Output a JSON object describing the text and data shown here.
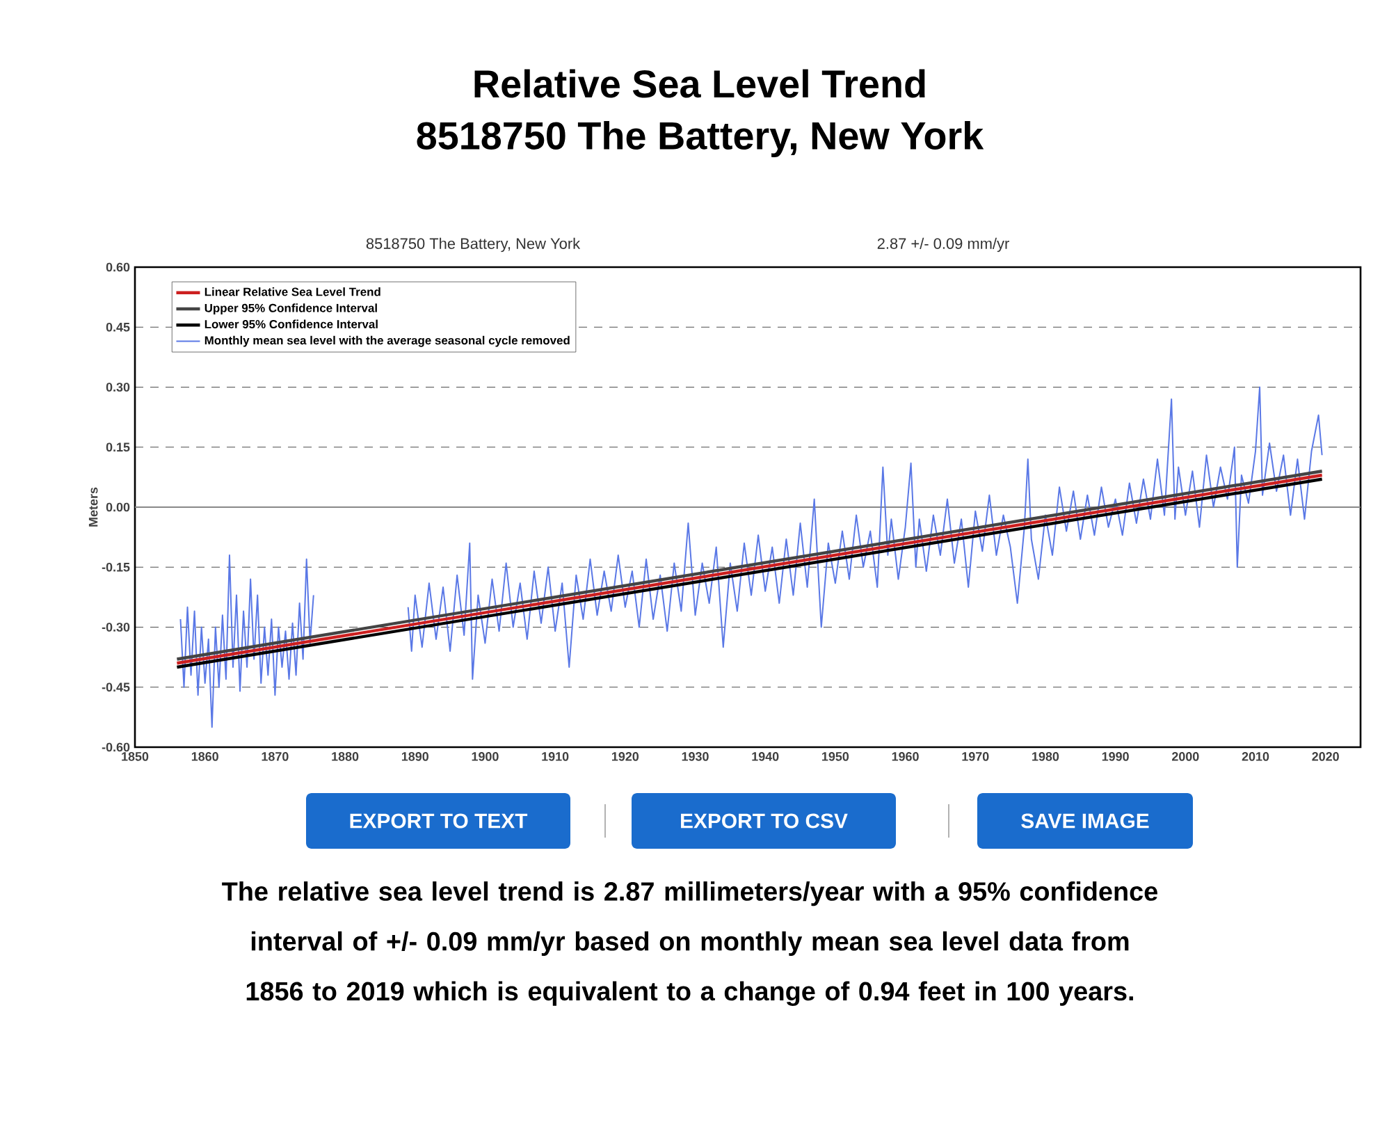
{
  "chart_data": {
    "type": "line",
    "title": "Relative Sea Level Trend",
    "subtitle": "8518750 The Battery, New York",
    "ylabel": "Meters",
    "annotations": [
      "8518750 The Battery, New York",
      "2.87 +/-  0.09 mm/yr",
      "EXPORT TO TEXT",
      "EXPORT TO CSV",
      "SAVE IMAGE",
      "The relative sea level trend is 2.87 millimeters/year with a 95% confidence interval of +/- 0.09 mm/yr based on monthly mean sea level data from 1856 to 2019 which is equivalent to a change of 0.94 feet in 100 years."
    ],
    "xlim": [
      1850,
      2025
    ],
    "xticks": [
      1850,
      1860,
      1870,
      1880,
      1890,
      1900,
      1910,
      1920,
      1930,
      1940,
      1950,
      1960,
      1970,
      1980,
      1990,
      2000,
      2010,
      2020
    ],
    "ylim": [
      -0.6,
      0.6
    ],
    "yticks": [
      {
        "value": -0.6,
        "label": "-0.60"
      },
      {
        "value": -0.45,
        "label": "-0.45"
      },
      {
        "value": -0.3,
        "label": "-0.30"
      },
      {
        "value": -0.15,
        "label": "-0.15"
      },
      {
        "value": 0,
        "label": "0.00"
      },
      {
        "value": 0.15,
        "label": "0.15"
      },
      {
        "value": 0.3,
        "label": "0.30"
      },
      {
        "value": 0.45,
        "label": "0.45"
      },
      {
        "value": 0.6,
        "label": "0.60"
      }
    ],
    "grid": "y",
    "legend": "top left",
    "marker": "none",
    "line_style": "solid",
    "ref_lines": [
      {
        "axis": "y",
        "value": 0,
        "color": "#888888"
      }
    ],
    "series": [
      {
        "name": "Linear Relative Sea Level Trend",
        "color": "#cc1f1f",
        "x": [
          1856,
          2019.5
        ],
        "values": [
          -0.39,
          0.08
        ]
      },
      {
        "name": "Upper 95% Confidence Interval",
        "color": "#444444",
        "x": [
          1856,
          2019.5
        ],
        "values": [
          -0.38,
          0.09
        ]
      },
      {
        "name": "Lower 95% Confidence Interval",
        "color": "#000000",
        "x": [
          1856,
          2019.5
        ],
        "values": [
          -0.4,
          0.07
        ]
      },
      {
        "name": "Monthly mean sea level with the average seasonal cycle removed",
        "color": "#5a78e6",
        "x": [
          1856.5,
          1857,
          1857.5,
          1858,
          1858.5,
          1859,
          1859.5,
          1860,
          1860.5,
          1861,
          1861.5,
          1862,
          1862.5,
          1863,
          1863.5,
          1864,
          1864.5,
          1865,
          1865.5,
          1866,
          1866.5,
          1867,
          1867.5,
          1868,
          1868.5,
          1869,
          1869.5,
          1870,
          1870.5,
          1871,
          1871.5,
          1872,
          1872.5,
          1873,
          1873.5,
          1874,
          1874.5,
          1875,
          1875.5,
          1882,
          1889,
          1889.5,
          1890,
          1891,
          1892,
          1893,
          1894,
          1895,
          1896,
          1897,
          1897.8,
          1898.2,
          1899,
          1900,
          1901,
          1902,
          1903,
          1904,
          1905,
          1906,
          1907,
          1908,
          1909,
          1910,
          1911,
          1912,
          1913,
          1914,
          1915,
          1916,
          1917,
          1918,
          1919,
          1920,
          1921,
          1922,
          1923,
          1924,
          1925,
          1926,
          1927,
          1928,
          1929,
          1930,
          1931,
          1932,
          1933,
          1934,
          1935,
          1936,
          1937,
          1938,
          1939,
          1940,
          1941,
          1942,
          1943,
          1944,
          1945,
          1946,
          1947,
          1948,
          1949,
          1950,
          1951,
          1952,
          1953,
          1954,
          1955,
          1956,
          1956.8,
          1957.5,
          1958,
          1959,
          1960,
          1960.8,
          1961.5,
          1962,
          1963,
          1964,
          1965,
          1966,
          1967,
          1968,
          1969,
          1970,
          1971,
          1972,
          1973,
          1974,
          1975,
          1976,
          1977,
          1977.5,
          1978,
          1979,
          1980,
          1981,
          1982,
          1983,
          1984,
          1985,
          1986,
          1987,
          1988,
          1989,
          1990,
          1991,
          1992,
          1993,
          1994,
          1995,
          1996,
          1997,
          1998,
          1998.5,
          1999,
          2000,
          2001,
          2002,
          2003,
          2004,
          2005,
          2006,
          2007,
          2007.4,
          2008,
          2009,
          2010,
          2010.6,
          2011,
          2012,
          2013,
          2014,
          2015,
          2016,
          2017,
          2018,
          2019,
          2019.5
        ],
        "values": [
          -0.28,
          -0.45,
          -0.25,
          -0.42,
          -0.26,
          -0.47,
          -0.3,
          -0.44,
          -0.33,
          -0.55,
          -0.3,
          -0.45,
          -0.27,
          -0.43,
          -0.12,
          -0.4,
          -0.22,
          -0.46,
          -0.26,
          -0.4,
          -0.18,
          -0.38,
          -0.22,
          -0.44,
          -0.3,
          -0.42,
          -0.28,
          -0.47,
          -0.3,
          -0.4,
          -0.31,
          -0.43,
          -0.29,
          -0.42,
          -0.24,
          -0.38,
          -0.13,
          -0.34,
          -0.22,
          null,
          -0.25,
          -0.36,
          -0.22,
          -0.35,
          -0.19,
          -0.33,
          -0.2,
          -0.36,
          -0.17,
          -0.32,
          -0.09,
          -0.43,
          -0.22,
          -0.34,
          -0.18,
          -0.31,
          -0.14,
          -0.3,
          -0.19,
          -0.33,
          -0.16,
          -0.29,
          -0.15,
          -0.31,
          -0.19,
          -0.4,
          -0.17,
          -0.28,
          -0.13,
          -0.27,
          -0.16,
          -0.26,
          -0.12,
          -0.25,
          -0.16,
          -0.3,
          -0.13,
          -0.28,
          -0.17,
          -0.31,
          -0.14,
          -0.26,
          -0.04,
          -0.27,
          -0.14,
          -0.24,
          -0.1,
          -0.35,
          -0.14,
          -0.26,
          -0.09,
          -0.22,
          -0.07,
          -0.21,
          -0.1,
          -0.24,
          -0.08,
          -0.22,
          -0.04,
          -0.2,
          0.02,
          -0.3,
          -0.09,
          -0.19,
          -0.06,
          -0.18,
          -0.02,
          -0.15,
          -0.06,
          -0.2,
          0.1,
          -0.12,
          -0.03,
          -0.18,
          -0.05,
          0.11,
          -0.15,
          -0.03,
          -0.16,
          -0.02,
          -0.12,
          0.02,
          -0.14,
          -0.03,
          -0.2,
          -0.01,
          -0.11,
          0.03,
          -0.12,
          -0.02,
          -0.1,
          -0.24,
          -0.05,
          0.12,
          -0.08,
          -0.18,
          -0.02,
          -0.12,
          0.05,
          -0.06,
          0.04,
          -0.08,
          0.03,
          -0.07,
          0.05,
          -0.05,
          0.02,
          -0.07,
          0.06,
          -0.04,
          0.07,
          -0.03,
          0.12,
          -0.02,
          0.27,
          -0.03,
          0.1,
          -0.02,
          0.09,
          -0.05,
          0.13,
          0.0,
          0.1,
          0.02,
          0.15,
          -0.15,
          0.08,
          0.01,
          0.14,
          0.3,
          0.03,
          0.16,
          0.04,
          0.13,
          -0.02,
          0.12,
          -0.03,
          0.14,
          0.23,
          0.13
        ]
      }
    ]
  }
}
